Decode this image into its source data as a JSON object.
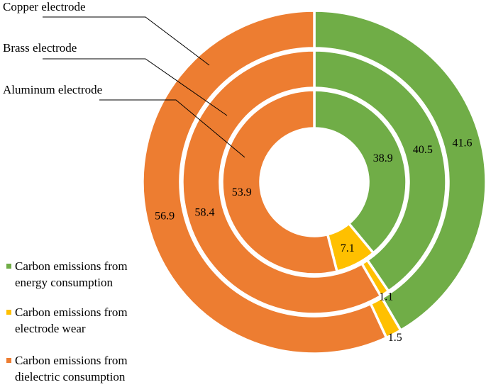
{
  "chart_data": {
    "type": "donut",
    "title": "",
    "rings": [
      {
        "name": "Aluminum electrode",
        "values": [
          38.9,
          7.1,
          53.9
        ]
      },
      {
        "name": "Brass electrode",
        "values": [
          40.5,
          1.1,
          58.4
        ]
      },
      {
        "name": "Copper electrode",
        "values": [
          41.6,
          1.5,
          56.9
        ]
      }
    ],
    "categories": [
      "Carbon emissions from energy consumption",
      "Carbon emissions from electrode wear",
      "Carbon emissions from dielectric consumption"
    ],
    "colors": [
      "#70ad47",
      "#ffc000",
      "#ed7d31"
    ],
    "legend_position": "bottom-left",
    "legend": [
      {
        "line1": "Carbon emissions from",
        "line2": "energy consumption",
        "color": "#70ad47"
      },
      {
        "line1": "Carbon emissions from",
        "line2": "electrode wear",
        "color": "#ffc000"
      },
      {
        "line1": "Carbon emissions from",
        "line2": "dielectric consumption",
        "color": "#ed7d31"
      }
    ]
  }
}
